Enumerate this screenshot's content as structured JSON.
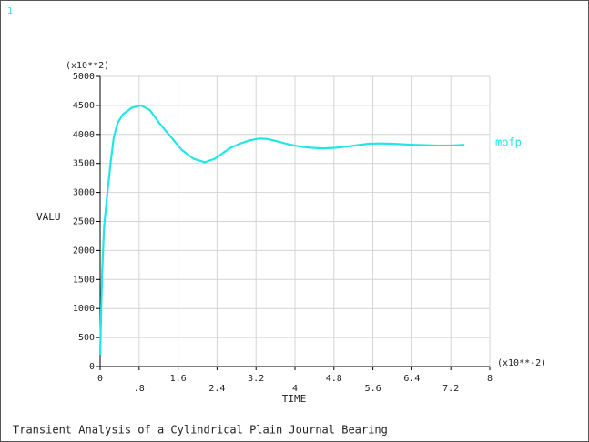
{
  "chart_data": {
    "type": "line",
    "window_number": "1",
    "title": "Transient Analysis of a Cylindrical Plain Journal Bearing",
    "xlabel": "TIME",
    "ylabel": "VALU",
    "x_multiplier": "(x10**-2)",
    "y_multiplier": "(x10**2)",
    "x": [
      0,
      0.04,
      0.08,
      0.15,
      0.22,
      0.28,
      0.36,
      0.47,
      0.65,
      0.84,
      1.02,
      1.21,
      1.45,
      1.68,
      1.92,
      2.15,
      2.35,
      2.52,
      2.7,
      2.9,
      3.08,
      3.27,
      3.45,
      3.64,
      3.87,
      4.11,
      4.35,
      4.58,
      4.82,
      5.05,
      5.28,
      5.51,
      5.75,
      5.98,
      6.21,
      6.45,
      6.68,
      6.92,
      7.2,
      7.48
    ],
    "series": [
      {
        "name": "mofp",
        "color": "#22e6e6",
        "values": [
          200,
          1600,
          2400,
          3000,
          3550,
          3950,
          4200,
          4350,
          4460,
          4500,
          4420,
          4200,
          3960,
          3730,
          3580,
          3520,
          3580,
          3680,
          3780,
          3850,
          3900,
          3930,
          3920,
          3880,
          3830,
          3790,
          3770,
          3760,
          3770,
          3790,
          3815,
          3840,
          3845,
          3840,
          3830,
          3820,
          3815,
          3810,
          3810,
          3820
        ]
      }
    ],
    "xlim": [
      0,
      8
    ],
    "ylim": [
      0,
      5000
    ],
    "xticks": [
      0,
      {
        "value": 0.8,
        "label": ".8"
      },
      1.6,
      2.4,
      3.2,
      4,
      4.8,
      5.6,
      6.4,
      7.2,
      8
    ],
    "yticks": [
      0,
      500,
      1000,
      1500,
      2000,
      2500,
      3000,
      3500,
      4000,
      4500,
      5000
    ],
    "grid": true
  }
}
